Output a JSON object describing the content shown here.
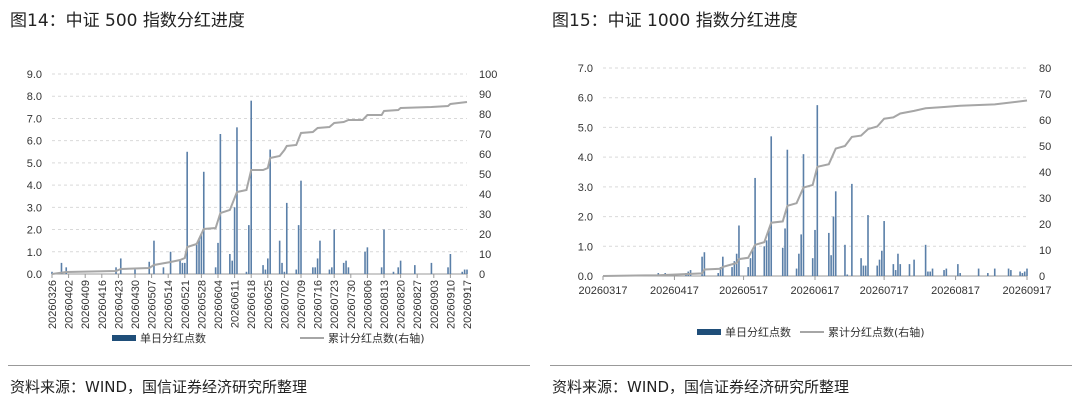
{
  "panels": [
    {
      "title": "图14：中证 500 指数分红进度",
      "source": "资料来源：WIND，国信证券经济研究所整理"
    },
    {
      "title": "图15：中证 1000 指数分红进度",
      "source": "资料来源：WIND，国信证券经济研究所整理"
    }
  ],
  "colors": {
    "bar": "#5a7fa8",
    "line": "#a6a6a6",
    "legend_bar": "#1f4e79"
  },
  "chart_data": [
    {
      "type": "bar+line",
      "title": "图14：中证 500 指数分红进度",
      "x_start": "20260326",
      "x_end": "20260917",
      "x_unit": "days since start",
      "x_tick_labels": [
        "20260326",
        "20260402",
        "20260409",
        "20260416",
        "20260423",
        "20260430",
        "20260507",
        "20260514",
        "20260521",
        "20260528",
        "20260604",
        "20260611",
        "20260618",
        "20260625",
        "20260702",
        "20260709",
        "20260716",
        "20260723",
        "20260730",
        "20260806",
        "20260813",
        "20260820",
        "20260827",
        "20260903",
        "20260910",
        "20260917"
      ],
      "ylim": [
        0,
        9
      ],
      "y_ticks": [
        "0.0",
        "1.0",
        "2.0",
        "3.0",
        "4.0",
        "5.0",
        "6.0",
        "7.0",
        "8.0",
        "9.0"
      ],
      "y2lim": [
        0,
        100
      ],
      "y2_ticks": [
        "0",
        "10",
        "20",
        "30",
        "40",
        "50",
        "60",
        "70",
        "80",
        "90",
        "100"
      ],
      "legend": [
        "单日分红点数",
        "累计分红点数(右轴)"
      ],
      "bars": [
        [
          0,
          0.1
        ],
        [
          4,
          0.5
        ],
        [
          6,
          0.3
        ],
        [
          27,
          0.3
        ],
        [
          29,
          0.7
        ],
        [
          35,
          0.2
        ],
        [
          41,
          0.55
        ],
        [
          43,
          1.5
        ],
        [
          47,
          0.3
        ],
        [
          50,
          1.0
        ],
        [
          54,
          0.6
        ],
        [
          55,
          0.5
        ],
        [
          56,
          0.5
        ],
        [
          57,
          5.5
        ],
        [
          61,
          1.4
        ],
        [
          62,
          1.6
        ],
        [
          63,
          1.8
        ],
        [
          64,
          4.6
        ],
        [
          69,
          0.3
        ],
        [
          70,
          1.4
        ],
        [
          71,
          6.3
        ],
        [
          75,
          0.9
        ],
        [
          76,
          0.6
        ],
        [
          77,
          3.0
        ],
        [
          78,
          6.6
        ],
        [
          82,
          0.1
        ],
        [
          83,
          2.2
        ],
        [
          84,
          7.8
        ],
        [
          89,
          0.4
        ],
        [
          90,
          0.2
        ],
        [
          91,
          0.7
        ],
        [
          92,
          5.6
        ],
        [
          96,
          1.5
        ],
        [
          97,
          0.5
        ],
        [
          98,
          0.1
        ],
        [
          99,
          3.2
        ],
        [
          103,
          0.2
        ],
        [
          104,
          2.2
        ],
        [
          105,
          4.2
        ],
        [
          110,
          0.3
        ],
        [
          111,
          0.3
        ],
        [
          112,
          0.7
        ],
        [
          113,
          1.5
        ],
        [
          117,
          0.2
        ],
        [
          118,
          0.3
        ],
        [
          119,
          2.0
        ],
        [
          123,
          0.5
        ],
        [
          124,
          0.6
        ],
        [
          125,
          0.3
        ],
        [
          132,
          1.0
        ],
        [
          133,
          1.2
        ],
        [
          139,
          0.3
        ],
        [
          140,
          2.0
        ],
        [
          144,
          0.1
        ],
        [
          146,
          0.3
        ],
        [
          147,
          0.6
        ],
        [
          153,
          0.4
        ],
        [
          160,
          0.5
        ],
        [
          167,
          0.3
        ],
        [
          168,
          0.9
        ],
        [
          173,
          0.1
        ],
        [
          174,
          0.2
        ],
        [
          175,
          0.2
        ]
      ],
      "cumulative": [
        [
          0,
          0
        ],
        [
          6,
          1
        ],
        [
          27,
          1.5
        ],
        [
          29,
          2.5
        ],
        [
          41,
          3
        ],
        [
          43,
          4.5
        ],
        [
          50,
          6
        ],
        [
          54,
          7
        ],
        [
          56,
          8
        ],
        [
          57,
          13.5
        ],
        [
          61,
          15
        ],
        [
          64,
          22.5
        ],
        [
          69,
          23
        ],
        [
          71,
          30.5
        ],
        [
          75,
          32
        ],
        [
          78,
          41
        ],
        [
          82,
          42
        ],
        [
          84,
          52
        ],
        [
          89,
          52
        ],
        [
          91,
          53
        ],
        [
          92,
          58
        ],
        [
          96,
          59
        ],
        [
          98,
          62
        ],
        [
          99,
          64
        ],
        [
          103,
          64.5
        ],
        [
          105,
          70.5
        ],
        [
          110,
          71
        ],
        [
          112,
          73
        ],
        [
          117,
          73.5
        ],
        [
          119,
          75.5
        ],
        [
          123,
          76
        ],
        [
          125,
          77
        ],
        [
          131,
          77
        ],
        [
          133,
          79.5
        ],
        [
          139,
          79.5
        ],
        [
          140,
          81.5
        ],
        [
          146,
          82
        ],
        [
          147,
          83
        ],
        [
          160,
          83.5
        ],
        [
          167,
          84
        ],
        [
          168,
          85
        ],
        [
          175,
          86
        ]
      ]
    },
    {
      "type": "bar+line",
      "title": "图15：中证 1000 指数分红进度",
      "x_start": "20260317",
      "x_end": "20260917",
      "x_unit": "days since start",
      "x_tick_labels": [
        "20260317",
        "20260417",
        "20260517",
        "20260617",
        "20260717",
        "20260817",
        "20260917"
      ],
      "ylim": [
        0,
        7
      ],
      "y_ticks": [
        "0.0",
        "1.0",
        "2.0",
        "3.0",
        "4.0",
        "5.0",
        "6.0",
        "7.0"
      ],
      "y2lim": [
        0,
        80
      ],
      "y2_ticks": [
        "0",
        "10",
        "20",
        "30",
        "40",
        "50",
        "60",
        "70",
        "80"
      ],
      "legend": [
        "单日分红点数",
        "累计分红点数(右轴)"
      ],
      "bars": [
        [
          24,
          0.1
        ],
        [
          27,
          0.1
        ],
        [
          36,
          0.1
        ],
        [
          37,
          0.15
        ],
        [
          38,
          0.2
        ],
        [
          43,
          0.65
        ],
        [
          44,
          0.8
        ],
        [
          50,
          0.1
        ],
        [
          51,
          0.3
        ],
        [
          52,
          0.65
        ],
        [
          56,
          0.3
        ],
        [
          57,
          0.5
        ],
        [
          58,
          0.75
        ],
        [
          59,
          1.7
        ],
        [
          63,
          0.3
        ],
        [
          64,
          0.6
        ],
        [
          65,
          0.9
        ],
        [
          66,
          3.3
        ],
        [
          70,
          1.0
        ],
        [
          71,
          1.2
        ],
        [
          72,
          1.6
        ],
        [
          73,
          4.7
        ],
        [
          78,
          0.95
        ],
        [
          79,
          1.6
        ],
        [
          80,
          4.25
        ],
        [
          84,
          0.25
        ],
        [
          85,
          0.75
        ],
        [
          86,
          1.4
        ],
        [
          87,
          4.1
        ],
        [
          91,
          0.6
        ],
        [
          92,
          1.55
        ],
        [
          93,
          5.75
        ],
        [
          98,
          1.45
        ],
        [
          99,
          0.7
        ],
        [
          100,
          2.0
        ],
        [
          101,
          2.85
        ],
        [
          105,
          1.05
        ],
        [
          106,
          0.05
        ],
        [
          108,
          3.1
        ],
        [
          112,
          0.6
        ],
        [
          113,
          0.35
        ],
        [
          114,
          0.35
        ],
        [
          115,
          2.05
        ],
        [
          119,
          0.35
        ],
        [
          120,
          0.55
        ],
        [
          121,
          0.85
        ],
        [
          122,
          1.85
        ],
        [
          126,
          0.4
        ],
        [
          127,
          0.2
        ],
        [
          128,
          0.75
        ],
        [
          129,
          0.4
        ],
        [
          133,
          0.4
        ],
        [
          135,
          0.55
        ],
        [
          140,
          1.05
        ],
        [
          141,
          0.15
        ],
        [
          142,
          0.15
        ],
        [
          143,
          0.25
        ],
        [
          148,
          0.2
        ],
        [
          149,
          0.25
        ],
        [
          154,
          0.4
        ],
        [
          155,
          0.1
        ],
        [
          163,
          0.25
        ],
        [
          167,
          0.1
        ],
        [
          170,
          0.25
        ],
        [
          176,
          0.25
        ],
        [
          177,
          0.2
        ],
        [
          181,
          0.15
        ],
        [
          182,
          0.1
        ],
        [
          183,
          0.15
        ],
        [
          184,
          0.25
        ]
      ],
      "cumulative": [
        [
          0,
          0
        ],
        [
          24,
          0.3
        ],
        [
          43,
          1
        ],
        [
          44,
          2.5
        ],
        [
          51,
          2.8
        ],
        [
          52,
          3.5
        ],
        [
          58,
          5
        ],
        [
          59,
          6.5
        ],
        [
          63,
          7
        ],
        [
          66,
          12
        ],
        [
          70,
          13
        ],
        [
          73,
          20.5
        ],
        [
          78,
          21
        ],
        [
          80,
          27
        ],
        [
          84,
          28
        ],
        [
          87,
          34
        ],
        [
          91,
          35
        ],
        [
          93,
          42
        ],
        [
          98,
          43
        ],
        [
          101,
          49
        ],
        [
          105,
          50
        ],
        [
          108,
          53.5
        ],
        [
          112,
          54
        ],
        [
          115,
          56.5
        ],
        [
          119,
          57.5
        ],
        [
          122,
          60.5
        ],
        [
          126,
          61
        ],
        [
          129,
          62.5
        ],
        [
          135,
          63.5
        ],
        [
          140,
          64.5
        ],
        [
          148,
          65
        ],
        [
          155,
          65.5
        ],
        [
          170,
          66
        ],
        [
          184,
          67.5
        ]
      ]
    }
  ]
}
